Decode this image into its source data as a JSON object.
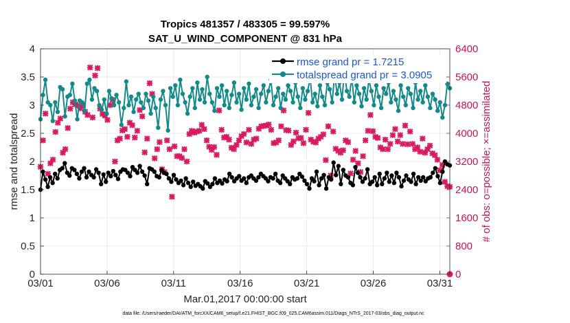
{
  "chart_data": {
    "type": "line",
    "title": "Tropics 481357 / 483305 = 99.597%",
    "subtitle": "SAT_U_WIND_COMPONENT @ 831 hPa",
    "xlabel": "Mar.01,2017 00:00:00 start",
    "ylabel_left": "rmse and totalspread",
    "ylabel_right": "# of obs: o=possible; ×=assimilated",
    "footer": "data file: /Users/raeder/DAI/ATM_forcXX/CAM6_setup/f.e21.FHIST_BGC.f09_025.CAM6assim.011/Diags_NTrS_2017-03/obs_diag_output.nc",
    "x_tick_labels": [
      "03/01",
      "03/06",
      "03/11",
      "03/16",
      "03/21",
      "03/26",
      "03/31"
    ],
    "x_tick_days": [
      1,
      6,
      11,
      16,
      21,
      26,
      31
    ],
    "xlim_days": [
      1,
      31.75
    ],
    "ylim_left": [
      0,
      4
    ],
    "yticks_left": [
      "0",
      "0.5",
      "1",
      "1.5",
      "2",
      "2.5",
      "3",
      "3.5",
      "4"
    ],
    "ylim_right": [
      0,
      6400
    ],
    "yticks_right": [
      "0",
      "800",
      "1600",
      "2400",
      "3200",
      "4000",
      "4800",
      "5600",
      "6400"
    ],
    "grid": true,
    "legend_position": "top-right",
    "series": [
      {
        "name": "rmse",
        "legend": "rmse grand pr = 1.7215",
        "color": "#000000",
        "axis": "left",
        "values": [
          1.5,
          1.82,
          1.68,
          1.55,
          1.72,
          1.62,
          1.78,
          1.7,
          1.85,
          1.88,
          1.97,
          1.8,
          1.75,
          1.88,
          1.85,
          1.78,
          1.7,
          1.82,
          1.88,
          1.72,
          1.82,
          1.76,
          1.72,
          1.86,
          1.8,
          1.6,
          1.77,
          1.64,
          1.8,
          1.74,
          1.83,
          1.76,
          1.69,
          1.82,
          1.86,
          1.85,
          1.8,
          1.74,
          1.9,
          1.85,
          1.8,
          1.92,
          1.82,
          1.75,
          1.6,
          1.88,
          1.86,
          1.82,
          1.74,
          1.72,
          1.85,
          1.8,
          1.78,
          1.7,
          1.64,
          1.76,
          1.68,
          1.62,
          1.66,
          1.58,
          1.7,
          1.62,
          1.55,
          1.64,
          1.57,
          1.6,
          1.56,
          1.52,
          1.65,
          1.61,
          1.55,
          1.6,
          1.7,
          1.62,
          1.66,
          1.61,
          1.68,
          1.65,
          1.78,
          1.72,
          1.65,
          1.7,
          1.74,
          1.66,
          1.7,
          1.62,
          1.72,
          1.75,
          1.7,
          1.66,
          1.72,
          1.78,
          1.74,
          1.7,
          1.65,
          1.72,
          1.7,
          1.78,
          1.66,
          1.62,
          1.75,
          1.7,
          1.65,
          1.6,
          1.72,
          1.68,
          1.7,
          1.78,
          1.73,
          1.66,
          1.6,
          1.52,
          1.7,
          1.65,
          1.82,
          1.58,
          1.7,
          1.76,
          1.52,
          1.72,
          1.68,
          1.98,
          1.76,
          1.92,
          1.6,
          1.85,
          1.75,
          1.72,
          1.62,
          1.58,
          1.9,
          1.8,
          1.72,
          1.64,
          1.7,
          1.86,
          1.6,
          1.64,
          1.72,
          1.58,
          1.78,
          1.6,
          1.7,
          1.8,
          1.64,
          1.75,
          1.62,
          1.8,
          1.72,
          1.56,
          1.66,
          1.75,
          1.68,
          1.64,
          1.78,
          1.6,
          1.72,
          1.66,
          1.72,
          1.65,
          1.7,
          1.72,
          1.8,
          1.88,
          1.74,
          1.62,
          1.82,
          2.0,
          1.95,
          1.93
        ]
      },
      {
        "name": "totalspread",
        "legend": "totalspread grand pr = 3.0905",
        "color": "#138a8a",
        "axis": "left",
        "values": [
          2.75,
          3.18,
          3.45,
          3.05,
          3.0,
          2.72,
          3.05,
          2.88,
          3.32,
          3.28,
          2.8,
          3.15,
          3.18,
          3.38,
          3.08,
          2.75,
          3.08,
          3.05,
          2.9,
          3.38,
          3.45,
          3.1,
          3.3,
          3.25,
          3.0,
          2.92,
          3.1,
          2.85,
          3.25,
          3.12,
          3.0,
          3.18,
          3.05,
          2.65,
          2.95,
          3.42,
          3.0,
          3.15,
          2.88,
          3.1,
          3.2,
          3.05,
          2.95,
          3.2,
          3.08,
          2.85,
          3.15,
          2.95,
          2.6,
          3.1,
          3.25,
          3.0,
          2.55,
          3.3,
          3.15,
          3.35,
          3.0,
          3.45,
          3.2,
          3.05,
          2.85,
          3.15,
          3.3,
          2.95,
          3.4,
          3.1,
          3.28,
          3.05,
          3.5,
          3.2,
          3.05,
          2.9,
          3.3,
          3.15,
          3.35,
          3.0,
          3.25,
          2.95,
          3.18,
          3.4,
          3.05,
          3.2,
          2.92,
          3.3,
          3.1,
          3.38,
          3.0,
          3.15,
          3.28,
          2.95,
          3.2,
          3.35,
          3.05,
          3.25,
          3.45,
          3.0,
          3.15,
          3.3,
          2.95,
          3.2,
          3.1,
          3.35,
          3.25,
          3.05,
          3.4,
          3.15,
          2.95,
          3.3,
          3.1,
          3.25,
          3.48,
          3.05,
          3.2,
          2.98,
          3.35,
          3.15,
          3.0,
          3.4,
          3.28,
          3.05,
          3.55,
          3.2,
          3.4,
          3.1,
          3.6,
          3.25,
          3.15,
          3.5,
          3.05,
          3.35,
          3.2,
          2.98,
          3.3,
          3.1,
          3.45,
          3.25,
          3.0,
          3.35,
          3.15,
          2.95,
          3.3,
          3.2,
          3.4,
          3.05,
          3.25,
          3.1,
          2.9,
          3.35,
          3.15,
          3.0,
          3.3,
          3.2,
          2.95,
          3.4,
          3.1,
          3.25,
          3.05,
          3.35,
          3.15,
          2.95,
          3.2,
          3.1,
          2.9,
          3.05,
          2.78,
          3.0,
          3.38,
          3.3
        ]
      },
      {
        "name": "obs_assimilated",
        "color": "#d81b60",
        "axis": "right",
        "values": [
          3050,
          3800,
          4560,
          2850,
          3150,
          3250,
          4040,
          4300,
          4420,
          3450,
          3550,
          4150,
          4700,
          4880,
          4820,
          4780,
          4710,
          4800,
          4610,
          4520,
          5870,
          4450,
          5640,
          5850,
          4700,
          4550,
          4500,
          4380,
          4800,
          4950,
          3200,
          3800,
          3850,
          4080,
          4120,
          3900,
          4300,
          4230,
          3880,
          4070,
          4660,
          4480,
          3460,
          3850,
          5420,
          5120,
          3290,
          3550,
          3750,
          2980,
          2900,
          3800,
          3550,
          2200,
          3630,
          3350,
          3350,
          3300,
          3550,
          3200,
          3980,
          4070,
          4020,
          4050,
          4070,
          4240,
          4120,
          3800,
          3620,
          3530,
          3610,
          3390,
          4650,
          4100,
          3880,
          3900,
          3820,
          3590,
          3550,
          3670,
          3800,
          3920,
          3980,
          3740,
          4100,
          3700,
          3820,
          3850,
          4130,
          4200,
          4210,
          4220,
          4250,
          4100,
          3720,
          3740,
          3800,
          4200,
          4650,
          4090,
          4080,
          3670,
          3770,
          4020,
          3860,
          3870,
          3720,
          4100,
          4580,
          3820,
          3760,
          3740,
          3850,
          3900,
          3970,
          3240,
          4200,
          2800,
          4050,
          3560,
          3500,
          3450,
          3520,
          3800,
          3750,
          2860,
          3250,
          3500,
          3150,
          2900,
          3350,
          3800,
          4070,
          4520,
          4060,
          3900,
          3870,
          3600,
          3550,
          3820,
          3550,
          3700,
          3950,
          4120,
          3770,
          3950,
          3700,
          4220,
          3690,
          4050,
          3700,
          3550,
          3600,
          3480,
          3850,
          3450,
          3550,
          3650,
          3430,
          3380,
          3250,
          2950,
          3100,
          2620,
          2500,
          2480
        ]
      },
      {
        "name": "obs_possible",
        "color": "#d81b60",
        "axis": "right",
        "note": "single value drawn at right edge",
        "values": [
          0
        ]
      }
    ]
  }
}
